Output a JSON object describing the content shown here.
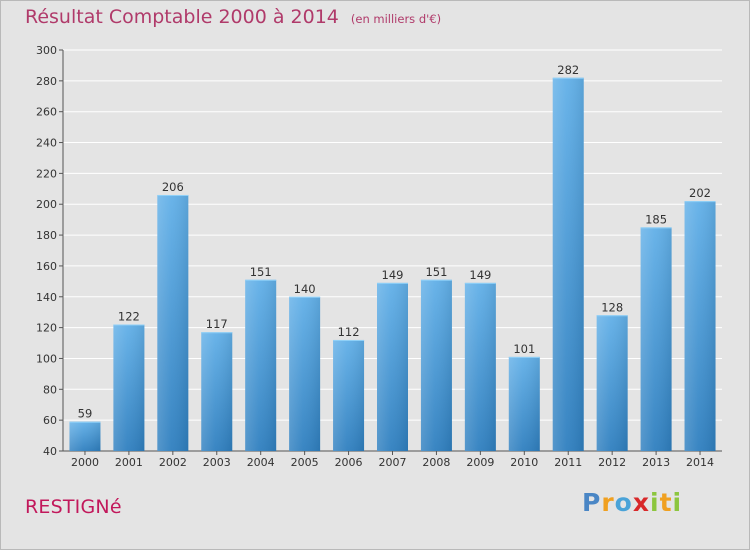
{
  "title": "Résultat Comptable 2000 à 2014",
  "subtitle": "(en milliers d'€)",
  "commune": "RESTIGNé",
  "logo": {
    "letters": [
      "P",
      "r",
      "o",
      "x",
      "i",
      "t",
      "i"
    ],
    "colors": [
      "#4a86c5",
      "#f0a020",
      "#4aa3d8",
      "#d8282a",
      "#8cc63e",
      "#f0a020",
      "#8cc63e"
    ]
  },
  "colors": {
    "bar_top": "#62b0e8",
    "bar_bottom": "#2f7fbf",
    "title": "#b03a6a",
    "background": "#e4e4e4"
  },
  "chart_data": {
    "type": "bar",
    "title": "Résultat Comptable 2000 à 2014",
    "subtitle": "(en milliers d'€)",
    "categories": [
      "2000",
      "2001",
      "2002",
      "2003",
      "2004",
      "2005",
      "2006",
      "2007",
      "2008",
      "2009",
      "2010",
      "2011",
      "2012",
      "2013",
      "2014"
    ],
    "values": [
      59,
      122,
      206,
      117,
      151,
      140,
      112,
      149,
      151,
      149,
      101,
      282,
      128,
      185,
      202
    ],
    "ylim": [
      40,
      300
    ],
    "yticks": [
      40,
      60,
      80,
      100,
      120,
      140,
      160,
      180,
      200,
      220,
      240,
      260,
      280,
      300
    ],
    "grid": true,
    "data_labels": true
  }
}
